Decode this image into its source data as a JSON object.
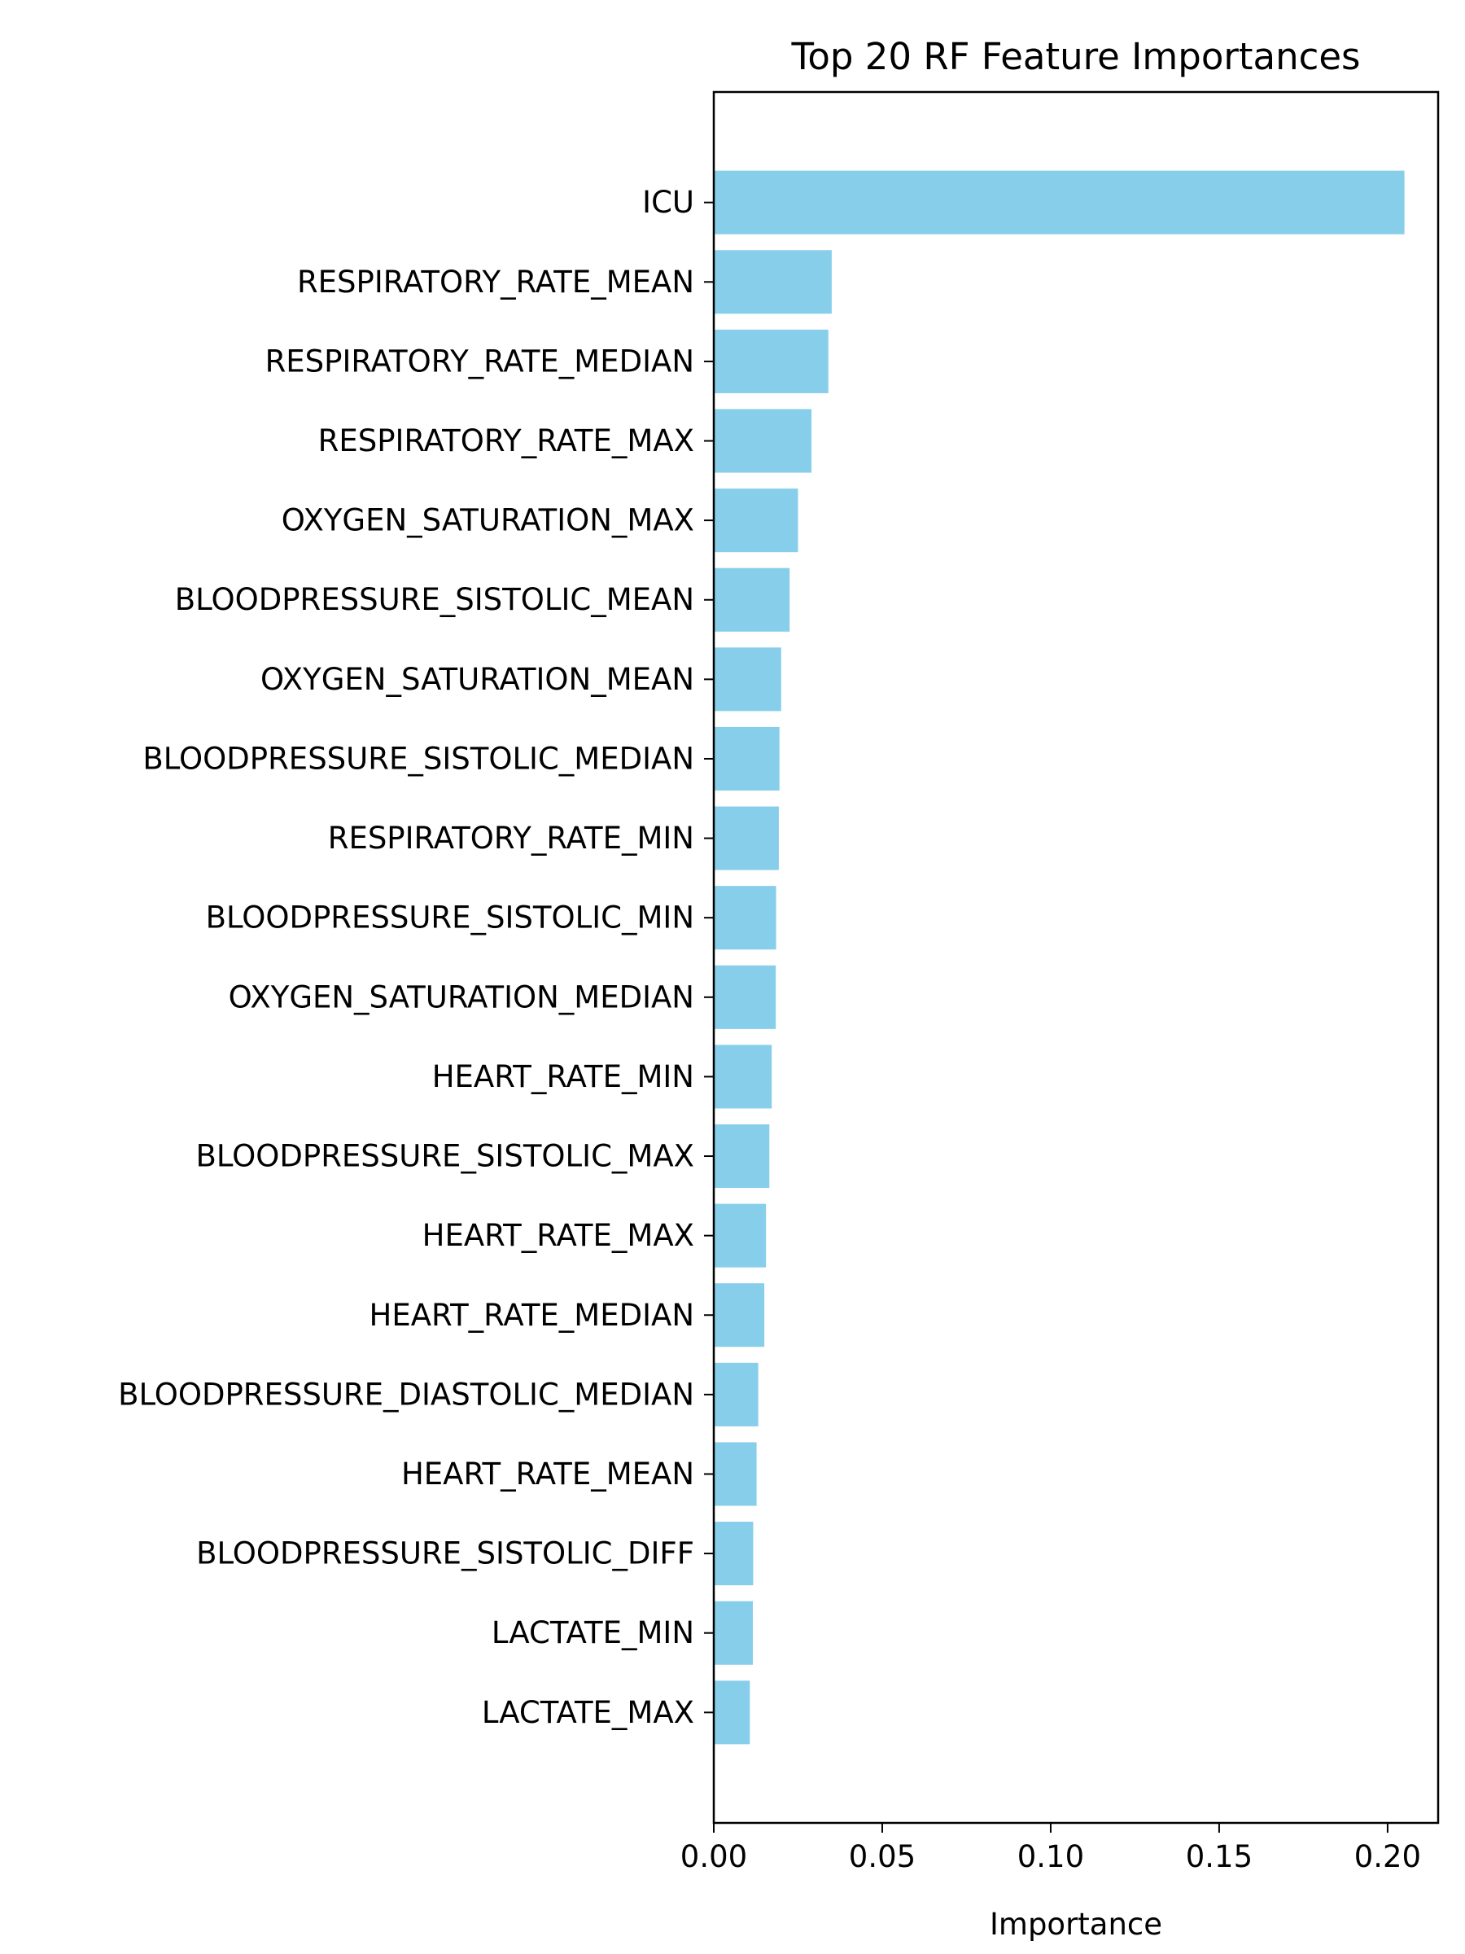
{
  "chart_data": {
    "type": "bar",
    "orientation": "horizontal",
    "title": "Top 20 RF Feature Importances",
    "xlabel": "Importance",
    "ylabel": "",
    "xlim": [
      0,
      0.215
    ],
    "xticks": [
      0.0,
      0.05,
      0.1,
      0.15,
      0.2
    ],
    "xtick_labels": [
      "0.00",
      "0.05",
      "0.10",
      "0.15",
      "0.20"
    ],
    "grid": false,
    "bar_color": "#87CEEB",
    "categories": [
      "ICU",
      "RESPIRATORY_RATE_MEAN",
      "RESPIRATORY_RATE_MEDIAN",
      "RESPIRATORY_RATE_MAX",
      "OXYGEN_SATURATION_MAX",
      "BLOODPRESSURE_SISTOLIC_MEAN",
      "OXYGEN_SATURATION_MEAN",
      "BLOODPRESSURE_SISTOLIC_MEDIAN",
      "RESPIRATORY_RATE_MIN",
      "BLOODPRESSURE_SISTOLIC_MIN",
      "OXYGEN_SATURATION_MEDIAN",
      "HEART_RATE_MIN",
      "BLOODPRESSURE_SISTOLIC_MAX",
      "HEART_RATE_MAX",
      "HEART_RATE_MEDIAN",
      "BLOODPRESSURE_DIASTOLIC_MEDIAN",
      "HEART_RATE_MEAN",
      "BLOODPRESSURE_SISTOLIC_DIFF",
      "LACTATE_MIN",
      "LACTATE_MAX"
    ],
    "values": [
      0.205,
      0.035,
      0.034,
      0.029,
      0.025,
      0.0225,
      0.02,
      0.0195,
      0.0193,
      0.0185,
      0.0184,
      0.0172,
      0.0165,
      0.0155,
      0.015,
      0.0132,
      0.0127,
      0.0117,
      0.0116,
      0.0107
    ]
  }
}
